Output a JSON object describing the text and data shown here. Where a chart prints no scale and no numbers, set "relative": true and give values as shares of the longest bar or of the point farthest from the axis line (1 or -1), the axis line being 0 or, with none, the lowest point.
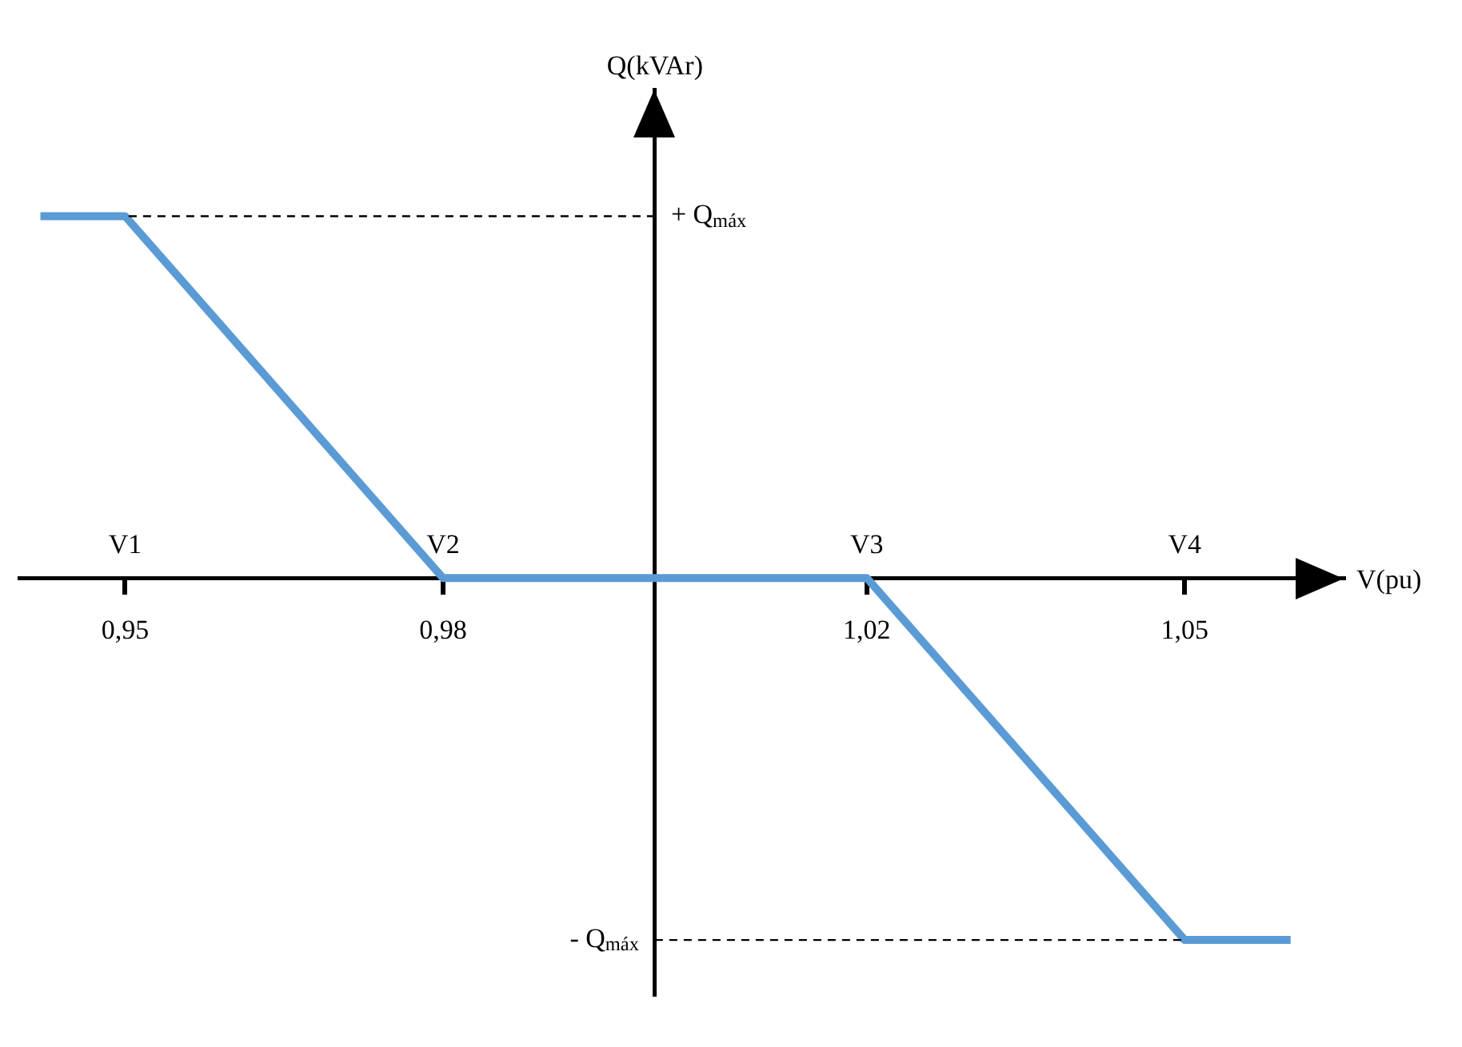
{
  "chart_data": {
    "type": "line",
    "xlabel": "V(pu)",
    "ylabel": "Q(kVAr)",
    "x": [
      0.942,
      0.95,
      0.98,
      1.02,
      1.05,
      1.06
    ],
    "series": [
      {
        "color": "#5b9bd5",
        "values": [
          1,
          1,
          0,
          0,
          -1,
          -1
        ]
      }
    ],
    "xlim": [
      0.94,
      1.065
    ],
    "relative": true,
    "ref_lines": [
      {
        "axis": "x",
        "value": 1,
        "color": "#000000"
      }
    ],
    "xticks": [
      {
        "value": 0.95,
        "label": "0,95"
      },
      {
        "value": 0.98,
        "label": "0,98"
      },
      {
        "value": 1.02,
        "label": "1,02"
      },
      {
        "value": 1.05,
        "label": "1,05"
      }
    ],
    "annotations": [
      "V1",
      "V2",
      "V3",
      "V4",
      {
        "text": "+ Q$_{máx}$",
        "x": 0.95,
        "y": 1
      },
      {
        "text": "- Q$_{máx}$",
        "x": 1.05,
        "y": -1
      }
    ],
    "marker": "none",
    "line_style": "solid",
    "legend": false
  }
}
